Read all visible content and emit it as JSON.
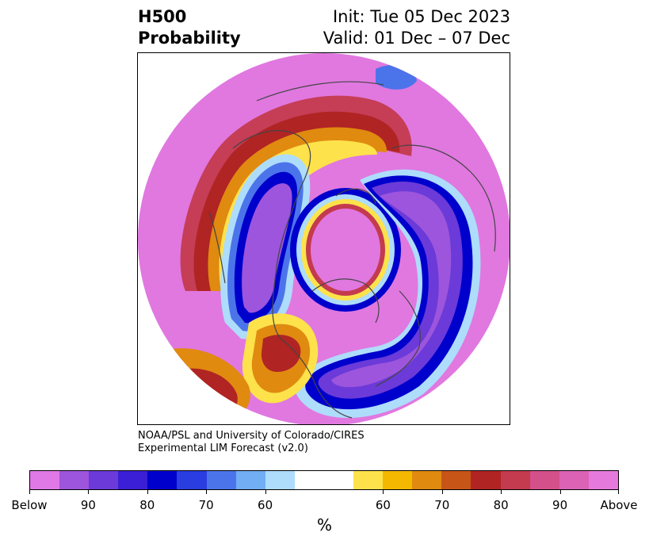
{
  "header": {
    "title_line1": "H500",
    "title_line2": "Probability",
    "init": "Init: Tue 05 Dec 2023",
    "valid": "Valid: 01 Dec – 07 Dec"
  },
  "map": {
    "projection": "north polar stereographic",
    "content": "probability field of 500 hPa height anomaly with country boundaries and coastlines"
  },
  "credits": {
    "line1": "NOAA/PSL and University of Colorado/CIRES",
    "line2": "Experimental LIM Forecast (v2.0)"
  },
  "colorbar": {
    "colors": [
      "#e078e6",
      "#9d55dd",
      "#6b3ad8",
      "#3a1fd6",
      "#0000cc",
      "#2a3de0",
      "#4c74ea",
      "#71aef3",
      "#aedcfb",
      "#ffffff",
      "#ffffff",
      "#fde24b",
      "#f5b800",
      "#e08a10",
      "#c85518",
      "#b02424",
      "#c43a4e",
      "#d3508a",
      "#dc62b6",
      "#e67adc"
    ],
    "tick_labels": [
      "Below",
      "90",
      "80",
      "70",
      "60",
      "60",
      "70",
      "80",
      "90",
      "Above"
    ],
    "unit": "%"
  },
  "colors": {
    "pink": "#e078e0",
    "purple": "#a055dd",
    "blue": "#0000cc",
    "lightblue": "#aedcfb",
    "yellow": "#fde24b",
    "orange": "#e08a10",
    "red": "#b02424",
    "rose": "#d3508a"
  }
}
